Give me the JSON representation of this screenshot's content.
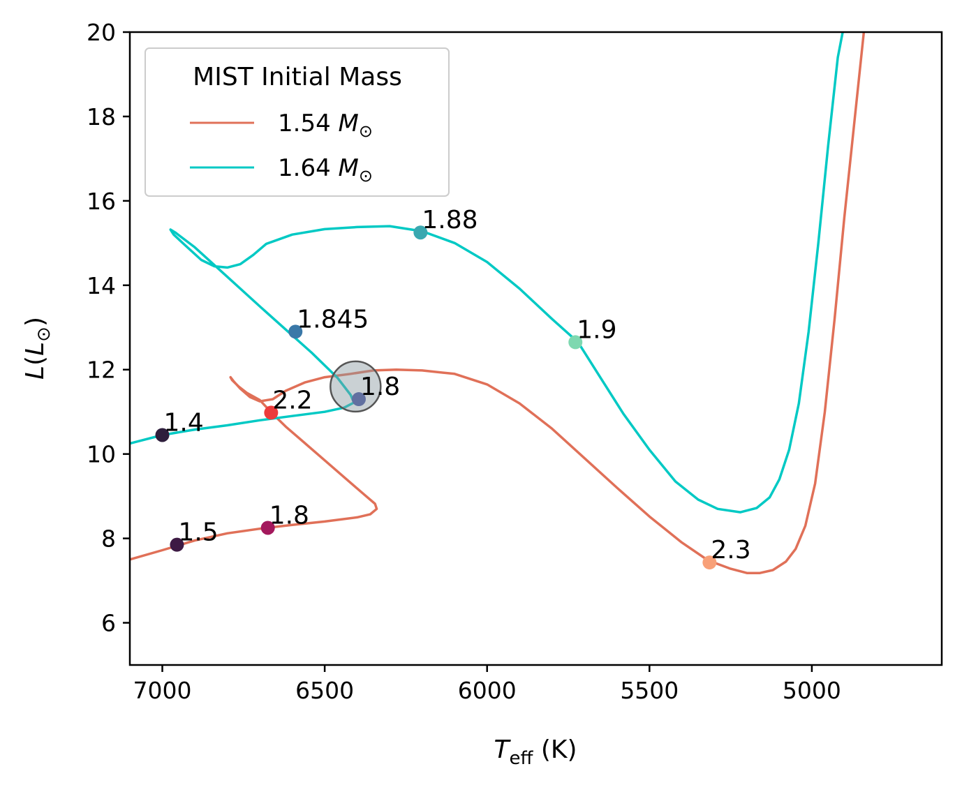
{
  "chart_data": {
    "type": "line",
    "xlabel": "T_eff (K)",
    "ylabel": "L(L_⊙)",
    "xlim": [
      7100,
      4600
    ],
    "ylim": [
      5,
      20
    ],
    "x_ticks": [
      7000,
      6500,
      6000,
      5500,
      5000
    ],
    "y_ticks": [
      6,
      8,
      10,
      12,
      14,
      16,
      18,
      20
    ],
    "legend": {
      "title": "MIST Initial Mass",
      "placement": "top-left",
      "entries": [
        {
          "label_prefix": "1.54",
          "label_unit": "M",
          "label_sub": "⊙",
          "color": "#e07058"
        },
        {
          "label_prefix": "1.64",
          "label_unit": "M",
          "label_sub": "⊙",
          "color": "#00c9c4"
        }
      ]
    },
    "series": [
      {
        "name": "1.54 M⊙",
        "color": "#e07058",
        "points": [
          [
            7100,
            7.5
          ],
          [
            7000,
            7.72
          ],
          [
            6900,
            7.95
          ],
          [
            6800,
            8.12
          ],
          [
            6700,
            8.23
          ],
          [
            6600,
            8.32
          ],
          [
            6500,
            8.4
          ],
          [
            6400,
            8.5
          ],
          [
            6360,
            8.57
          ],
          [
            6340,
            8.7
          ],
          [
            6345,
            8.82
          ],
          [
            6380,
            9.05
          ],
          [
            6440,
            9.45
          ],
          [
            6500,
            9.85
          ],
          [
            6560,
            10.25
          ],
          [
            6620,
            10.65
          ],
          [
            6660,
            10.95
          ],
          [
            6700,
            11.28
          ],
          [
            6740,
            11.45
          ],
          [
            6765,
            11.6
          ],
          [
            6785,
            11.75
          ],
          [
            6790,
            11.82
          ],
          [
            6780,
            11.72
          ],
          [
            6760,
            11.55
          ],
          [
            6730,
            11.35
          ],
          [
            6700,
            11.25
          ],
          [
            6660,
            11.3
          ],
          [
            6620,
            11.5
          ],
          [
            6560,
            11.7
          ],
          [
            6500,
            11.82
          ],
          [
            6420,
            11.9
          ],
          [
            6350,
            11.98
          ],
          [
            6280,
            12.0
          ],
          [
            6200,
            11.98
          ],
          [
            6100,
            11.9
          ],
          [
            6000,
            11.65
          ],
          [
            5900,
            11.2
          ],
          [
            5800,
            10.6
          ],
          [
            5700,
            9.9
          ],
          [
            5600,
            9.2
          ],
          [
            5500,
            8.52
          ],
          [
            5400,
            7.9
          ],
          [
            5320,
            7.48
          ],
          [
            5250,
            7.28
          ],
          [
            5200,
            7.18
          ],
          [
            5160,
            7.18
          ],
          [
            5120,
            7.25
          ],
          [
            5080,
            7.45
          ],
          [
            5050,
            7.75
          ],
          [
            5020,
            8.3
          ],
          [
            4990,
            9.3
          ],
          [
            4960,
            11.0
          ],
          [
            4930,
            13.2
          ],
          [
            4900,
            15.6
          ],
          [
            4870,
            17.8
          ],
          [
            4840,
            20.0
          ]
        ]
      },
      {
        "name": "1.64 M⊙",
        "color": "#00c9c4",
        "points": [
          [
            7100,
            10.25
          ],
          [
            7000,
            10.45
          ],
          [
            6900,
            10.58
          ],
          [
            6800,
            10.68
          ],
          [
            6700,
            10.8
          ],
          [
            6600,
            10.9
          ],
          [
            6500,
            11.0
          ],
          [
            6440,
            11.1
          ],
          [
            6410,
            11.22
          ],
          [
            6420,
            11.4
          ],
          [
            6460,
            11.8
          ],
          [
            6540,
            12.4
          ],
          [
            6620,
            12.95
          ],
          [
            6700,
            13.5
          ],
          [
            6800,
            14.2
          ],
          [
            6900,
            14.9
          ],
          [
            6960,
            15.25
          ],
          [
            6975,
            15.32
          ],
          [
            6965,
            15.2
          ],
          [
            6930,
            14.95
          ],
          [
            6880,
            14.6
          ],
          [
            6840,
            14.45
          ],
          [
            6800,
            14.42
          ],
          [
            6760,
            14.5
          ],
          [
            6720,
            14.72
          ],
          [
            6680,
            14.98
          ],
          [
            6600,
            15.2
          ],
          [
            6500,
            15.33
          ],
          [
            6400,
            15.38
          ],
          [
            6300,
            15.4
          ],
          [
            6200,
            15.28
          ],
          [
            6100,
            15.0
          ],
          [
            6000,
            14.55
          ],
          [
            5900,
            13.92
          ],
          [
            5800,
            13.2
          ],
          [
            5720,
            12.65
          ],
          [
            5650,
            11.8
          ],
          [
            5580,
            10.95
          ],
          [
            5500,
            10.1
          ],
          [
            5420,
            9.35
          ],
          [
            5350,
            8.92
          ],
          [
            5290,
            8.7
          ],
          [
            5220,
            8.62
          ],
          [
            5170,
            8.72
          ],
          [
            5130,
            8.97
          ],
          [
            5100,
            9.4
          ],
          [
            5070,
            10.1
          ],
          [
            5040,
            11.2
          ],
          [
            5010,
            12.9
          ],
          [
            4980,
            15.0
          ],
          [
            4950,
            17.3
          ],
          [
            4920,
            19.4
          ],
          [
            4905,
            20.0
          ]
        ]
      }
    ],
    "markers": [
      {
        "x": 7000,
        "y": 10.45,
        "label": "1.4",
        "color": "#2e1e3c"
      },
      {
        "x": 6955,
        "y": 7.85,
        "label": "1.5",
        "color": "#3d1a44"
      },
      {
        "x": 6665,
        "y": 10.98,
        "label": "2.2",
        "color": "#ec3b3b"
      },
      {
        "x": 6675,
        "y": 8.25,
        "label": "1.8",
        "color": "#a3185c"
      },
      {
        "x": 6590,
        "y": 12.9,
        "label": "1.845",
        "color": "#3a78a8"
      },
      {
        "x": 6395,
        "y": 11.3,
        "label": "1.8",
        "color": "#6170a0"
      },
      {
        "x": 6205,
        "y": 15.25,
        "label": "1.88",
        "color": "#3aa8b0"
      },
      {
        "x": 5728,
        "y": 12.65,
        "label": "1.9",
        "color": "#7ed8b0"
      },
      {
        "x": 5315,
        "y": 7.43,
        "label": "2.3",
        "color": "#f8a078"
      }
    ],
    "highlight_circle": {
      "x": 6405,
      "y": 11.6
    }
  }
}
